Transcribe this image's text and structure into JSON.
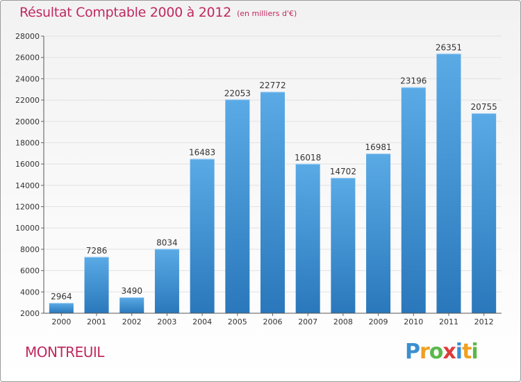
{
  "header": {
    "title": "Résultat Comptable 2000 à 2012",
    "subtitle": "(en milliers d'€)"
  },
  "footer": {
    "town": "MONTREUIL",
    "logo_letters": [
      {
        "char": "P",
        "color": "#3b8fd0"
      },
      {
        "char": "r",
        "color": "#f0a020"
      },
      {
        "char": "o",
        "color": "#59b94a"
      },
      {
        "char": "x",
        "color": "#e03a3a"
      },
      {
        "char": "i",
        "color": "#3b8fd0"
      },
      {
        "char": "t",
        "color": "#f0a020"
      },
      {
        "char": "i",
        "color": "#59b94a"
      }
    ]
  },
  "colors": {
    "bar": "#3f95d6",
    "bar_dark": "#2a7bbf",
    "grid": "#e2e2e2",
    "title": "#c0285e"
  },
  "chart_data": {
    "type": "bar",
    "categories": [
      "2000",
      "2001",
      "2002",
      "2003",
      "2004",
      "2005",
      "2006",
      "2007",
      "2008",
      "2009",
      "2010",
      "2011",
      "2012"
    ],
    "values": [
      2964,
      7286,
      3490,
      8034,
      16483,
      22053,
      22772,
      16018,
      14702,
      16981,
      23196,
      26351,
      20755
    ],
    "title": "Résultat Comptable 2000 à 2012",
    "xlabel": "",
    "ylabel": "",
    "ylim": [
      2000,
      28000
    ],
    "yticks": [
      2000,
      4000,
      6000,
      8000,
      10000,
      12000,
      14000,
      16000,
      18000,
      20000,
      22000,
      24000,
      26000,
      28000
    ],
    "grid": true,
    "data_labels": true
  }
}
